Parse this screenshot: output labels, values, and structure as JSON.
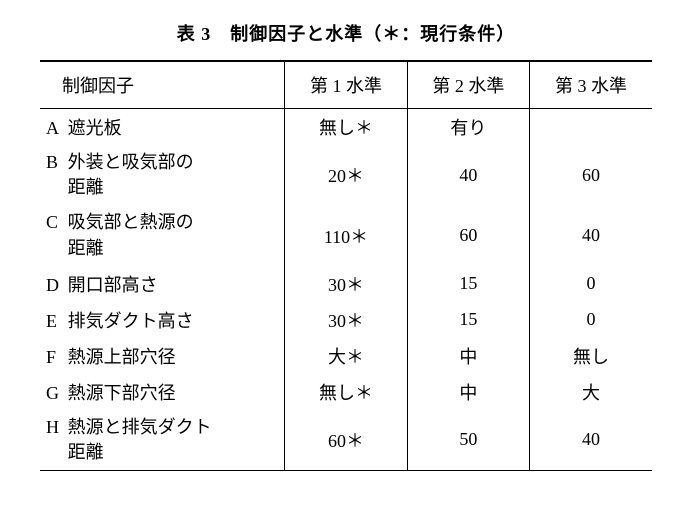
{
  "caption": "表 3　制御因子と水準（＊：現行条件）",
  "headers": {
    "factor": "制御因子",
    "level1": "第 1 水準",
    "level2": "第 2 水準",
    "level3": "第 3 水準"
  },
  "rows": [
    {
      "id": "A",
      "name_line1": "遮光板",
      "name_line2": "",
      "l1": "無し＊",
      "l2": "有り",
      "l3": ""
    },
    {
      "id": "B",
      "name_line1": "外装と吸気部の",
      "name_line2": "距離",
      "l1": "20＊",
      "l2": "40",
      "l3": "60"
    },
    {
      "id": "C",
      "name_line1": "吸気部と熱源の",
      "name_line2": "距離",
      "l1": "110＊",
      "l2": "60",
      "l3": "40"
    },
    {
      "id": "D",
      "name_line1": "開口部高さ",
      "name_line2": "",
      "l1": "30＊",
      "l2": "15",
      "l3": "0"
    },
    {
      "id": "E",
      "name_line1": "排気ダクト高さ",
      "name_line2": "",
      "l1": "30＊",
      "l2": "15",
      "l3": "0"
    },
    {
      "id": "F",
      "name_line1": "熱源上部穴径",
      "name_line2": "",
      "l1": "大＊",
      "l2": "中",
      "l3": "無し"
    },
    {
      "id": "G",
      "name_line1": "熱源下部穴径",
      "name_line2": "",
      "l1": "無し＊",
      "l2": "中",
      "l3": "大"
    },
    {
      "id": "H",
      "name_line1": "熱源と排気ダクト",
      "name_line2": "距離",
      "l1": "60＊",
      "l2": "50",
      "l3": "40"
    }
  ],
  "style": {
    "background_color": "#ffffff",
    "text_color": "#000000",
    "border_color": "#000000",
    "font_size_body": 18,
    "font_size_caption": 18,
    "col_widths_pct": [
      40,
      20,
      20,
      20
    ]
  }
}
